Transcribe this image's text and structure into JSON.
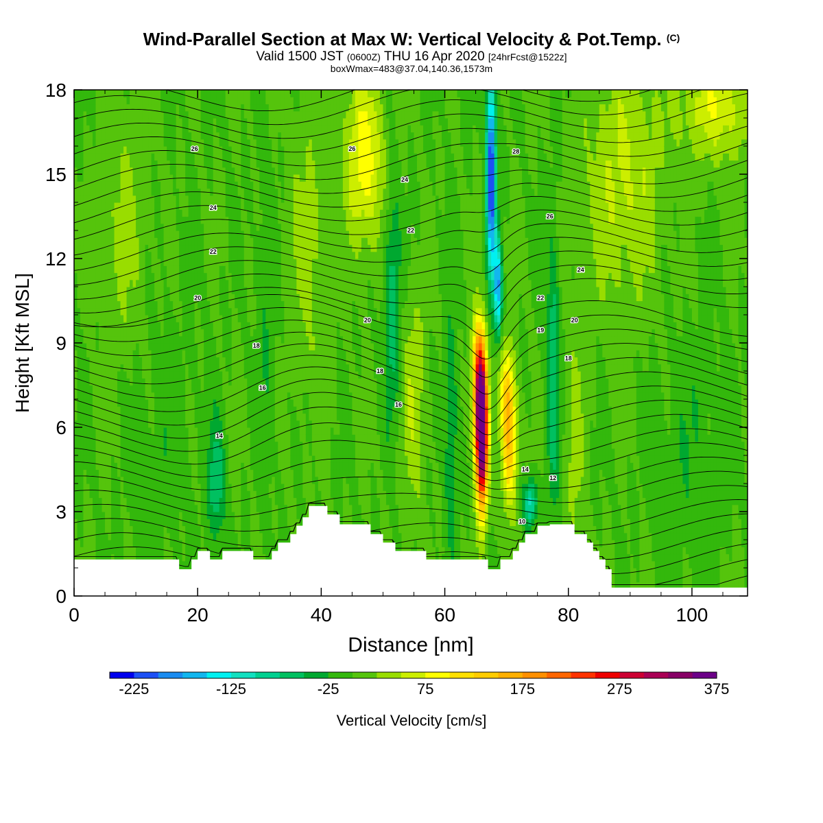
{
  "header": {
    "title": "Wind-Parallel Section at Max W: Vertical Velocity & Pot.Temp.",
    "title_mark": "(C)",
    "valid_a": "Valid 1500 JST",
    "valid_zulu": "(0600Z)",
    "valid_b": "THU 16 Apr 2020",
    "forecast_tag": "[24hrFcst@1522z]",
    "box_info": "boxWmax=483@37.04,140.36,1573m"
  },
  "chart_data": {
    "type": "heatmap",
    "xlabel": "Distance [nm]",
    "ylabel": "Height [Kft MSL]",
    "xlim": [
      0,
      109
    ],
    "ylim": [
      0,
      18
    ],
    "x_ticks": [
      0,
      20,
      40,
      60,
      80,
      100
    ],
    "y_ticks": [
      0,
      3,
      6,
      9,
      12,
      15,
      18
    ],
    "colorbar": {
      "label": "Vertical Velocity [cm/s]",
      "tick_labels": [
        "-225",
        "-125",
        "-25",
        "75",
        "175",
        "275",
        "375"
      ],
      "colors": [
        "#0000ee",
        "#1d50f5",
        "#1a8cf0",
        "#12b6ee",
        "#00f0f0",
        "#12e0c0",
        "#00d090",
        "#00c060",
        "#00a830",
        "#33b80c",
        "#55c40c",
        "#99dd00",
        "#ccee00",
        "#ffff00",
        "#ffe000",
        "#ffcc00",
        "#ffb000",
        "#ff9000",
        "#ff6600",
        "#ff3300",
        "#ee0000",
        "#cc0033",
        "#aa0055",
        "#880066",
        "#6c0088"
      ]
    },
    "terrain_profile": [
      [
        0,
        1.3
      ],
      [
        17,
        1.3
      ],
      [
        17,
        0.95
      ],
      [
        19,
        0.95
      ],
      [
        19,
        1.3
      ],
      [
        20,
        1.3
      ],
      [
        20,
        1.6
      ],
      [
        22,
        1.6
      ],
      [
        22,
        1.3
      ],
      [
        24,
        1.3
      ],
      [
        24,
        1.6
      ],
      [
        29,
        1.6
      ],
      [
        29,
        1.3
      ],
      [
        32,
        1.3
      ],
      [
        32,
        1.6
      ],
      [
        33,
        1.6
      ],
      [
        33,
        1.9
      ],
      [
        35,
        1.9
      ],
      [
        35,
        2.2
      ],
      [
        36,
        2.2
      ],
      [
        36,
        2.5
      ],
      [
        37,
        2.5
      ],
      [
        37,
        2.8
      ],
      [
        38,
        2.8
      ],
      [
        38,
        3.2
      ],
      [
        41,
        3.2
      ],
      [
        41,
        2.9
      ],
      [
        43,
        2.9
      ],
      [
        43,
        2.55
      ],
      [
        48,
        2.55
      ],
      [
        48,
        2.2
      ],
      [
        50,
        2.2
      ],
      [
        50,
        1.9
      ],
      [
        52,
        1.9
      ],
      [
        52,
        1.6
      ],
      [
        57,
        1.6
      ],
      [
        57,
        1.3
      ],
      [
        64,
        1.3
      ],
      [
        64,
        1.3
      ],
      [
        67,
        1.3
      ],
      [
        67,
        0.95
      ],
      [
        69,
        0.95
      ],
      [
        69,
        1.3
      ],
      [
        71,
        1.3
      ],
      [
        71,
        1.6
      ],
      [
        72,
        1.6
      ],
      [
        72,
        1.9
      ],
      [
        73,
        1.9
      ],
      [
        73,
        2.2
      ],
      [
        75,
        2.2
      ],
      [
        75,
        2.5
      ],
      [
        77,
        2.5
      ],
      [
        77,
        2.55
      ],
      [
        81,
        2.55
      ],
      [
        81,
        2.2
      ],
      [
        83,
        2.2
      ],
      [
        83,
        1.9
      ],
      [
        84,
        1.9
      ],
      [
        84,
        1.6
      ],
      [
        85,
        1.6
      ],
      [
        85,
        1.3
      ],
      [
        86,
        1.3
      ],
      [
        86,
        0.95
      ],
      [
        87,
        0.95
      ],
      [
        87,
        0.3
      ],
      [
        109,
        0.3
      ]
    ],
    "w_centers": [
      {
        "x": 66.0,
        "y": 5.5,
        "sx": 0.9,
        "sy": 2.4,
        "w": 380
      },
      {
        "x": 65.6,
        "y": 7.5,
        "sx": 1.1,
        "sy": 2.2,
        "w": 250
      },
      {
        "x": 70.5,
        "y": 5.5,
        "sx": 1.2,
        "sy": 2.2,
        "w": 150
      },
      {
        "x": 70.0,
        "y": 7.5,
        "sx": 1.0,
        "sy": 1.5,
        "w": 90
      },
      {
        "x": 67.5,
        "y": 15.0,
        "sx": 0.75,
        "sy": 3.6,
        "w": -240
      },
      {
        "x": 68.6,
        "y": 11.0,
        "sx": 0.6,
        "sy": 1.6,
        "w": -170
      },
      {
        "x": 73.8,
        "y": 3.3,
        "sx": 1.1,
        "sy": 0.8,
        "w": -110
      },
      {
        "x": 47.0,
        "y": 15.5,
        "sx": 3.0,
        "sy": 3.0,
        "w": 95
      },
      {
        "x": 51.5,
        "y": 10.5,
        "sx": 1.3,
        "sy": 4.0,
        "w": -70
      },
      {
        "x": 55.0,
        "y": 7.0,
        "sx": 2.0,
        "sy": 4.0,
        "w": 45
      },
      {
        "x": 61.0,
        "y": 6.0,
        "sx": 1.0,
        "sy": 4.0,
        "w": -55
      },
      {
        "x": 77.5,
        "y": 8.0,
        "sx": 1.0,
        "sy": 5.0,
        "w": -70
      },
      {
        "x": 89.0,
        "y": 15.0,
        "sx": 6.0,
        "sy": 4.5,
        "w": 55
      },
      {
        "x": 104.0,
        "y": 17.5,
        "sx": 6.0,
        "sy": 2.0,
        "w": 70
      },
      {
        "x": 23.0,
        "y": 4.0,
        "sx": 1.4,
        "sy": 2.0,
        "w": -70
      },
      {
        "x": 8.0,
        "y": 13.0,
        "sx": 4.0,
        "sy": 5.0,
        "w": 30
      },
      {
        "x": 38.0,
        "y": 12.5,
        "sx": 3.5,
        "sy": 5.0,
        "w": 35
      },
      {
        "x": 14.0,
        "y": 6.0,
        "sx": 6.0,
        "sy": 4.0,
        "w": -15
      },
      {
        "x": 100.0,
        "y": 5.0,
        "sx": 6.0,
        "sy": 4.0,
        "w": -20
      },
      {
        "x": 81.0,
        "y": 5.5,
        "sx": 1.3,
        "sy": 4.0,
        "w": 40
      },
      {
        "x": 31.0,
        "y": 10.0,
        "sx": 1.5,
        "sy": 6.0,
        "w": -25
      }
    ],
    "theta_label_values": [
      "26",
      "24",
      "22",
      "20",
      "18",
      "16",
      "14",
      "12",
      "10"
    ],
    "theta_labels": [
      {
        "x": 19.5,
        "y": 15.9,
        "text": "26"
      },
      {
        "x": 22.5,
        "y": 13.8,
        "text": "24"
      },
      {
        "x": 22.5,
        "y": 12.25,
        "text": "22"
      },
      {
        "x": 20.0,
        "y": 10.6,
        "text": "20"
      },
      {
        "x": 29.5,
        "y": 8.9,
        "text": "18"
      },
      {
        "x": 30.5,
        "y": 7.4,
        "text": "16"
      },
      {
        "x": 23.5,
        "y": 5.7,
        "text": "14"
      },
      {
        "x": 45.0,
        "y": 15.9,
        "text": "26"
      },
      {
        "x": 53.5,
        "y": 14.8,
        "text": "24"
      },
      {
        "x": 54.5,
        "y": 13.0,
        "text": "22"
      },
      {
        "x": 47.5,
        "y": 9.8,
        "text": "20"
      },
      {
        "x": 49.5,
        "y": 8.0,
        "text": "18"
      },
      {
        "x": 52.5,
        "y": 6.8,
        "text": "16"
      },
      {
        "x": 71.5,
        "y": 15.8,
        "text": "28"
      },
      {
        "x": 77.0,
        "y": 13.5,
        "text": "26"
      },
      {
        "x": 82.0,
        "y": 11.6,
        "text": "24"
      },
      {
        "x": 75.5,
        "y": 10.6,
        "text": "22"
      },
      {
        "x": 81.0,
        "y": 9.8,
        "text": "20"
      },
      {
        "x": 75.5,
        "y": 9.45,
        "text": "19"
      },
      {
        "x": 80.0,
        "y": 8.45,
        "text": "18"
      },
      {
        "x": 73.0,
        "y": 4.5,
        "text": "14"
      },
      {
        "x": 77.5,
        "y": 4.2,
        "text": "12"
      },
      {
        "x": 72.5,
        "y": 2.65,
        "text": "10"
      }
    ]
  }
}
